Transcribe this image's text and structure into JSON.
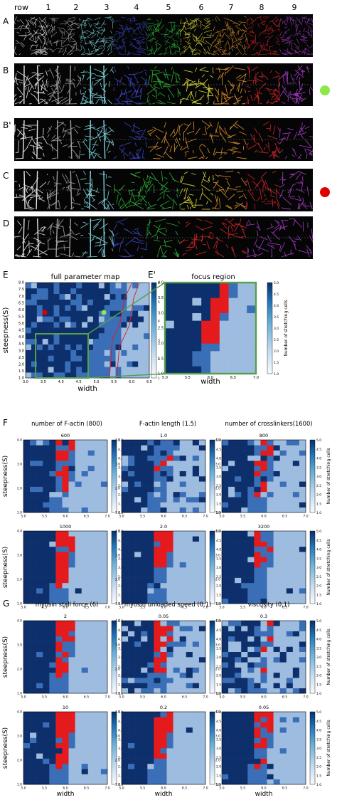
{
  "figure": {
    "top_labels": [
      "row",
      "1",
      "2",
      "3",
      "4",
      "5",
      "6",
      "7",
      "8",
      "9"
    ],
    "colors": {
      "row_palette": [
        "#e6e6e6",
        "#a0a0a0",
        "#7fd3dc",
        "#3b46c8",
        "#2fae3a",
        "#d8d83a",
        "#e0902a",
        "#d3262a",
        "#a63cc8"
      ],
      "dark_blue": "#0d2f6b",
      "mid_blue": "#3a6fb7",
      "light_blue": "#9dbcdf",
      "white": "#f2f6fb",
      "red": "#e41a1c",
      "green_dot": "#8ee84a",
      "red_dot": "#e00000",
      "zoom_green": "#55a04a"
    },
    "rows": [
      {
        "label": "A",
        "marker": "none"
      },
      {
        "label": "B",
        "marker": "green-dot"
      },
      {
        "label": "B'",
        "marker": "none"
      },
      {
        "label": "C",
        "marker": "red-dot"
      },
      {
        "label": "D",
        "marker": "none"
      }
    ],
    "panel_E": {
      "label": "E",
      "title": "full parameter map",
      "xlabel": "width",
      "ylabel": "steepness(S)",
      "xticks": [
        "3.0",
        "3.5",
        "4.0",
        "4.5",
        "5.0",
        "5.5",
        "6.0",
        "6.5"
      ],
      "yticks": [
        "1.0",
        "1.5",
        "2.0",
        "2.5",
        "3.0",
        "3.5",
        "4.0",
        "4.5",
        "5.0",
        "5.5",
        "6.0",
        "6.5",
        "7.0",
        "7.5",
        "8.0"
      ],
      "colorbar_ticks": [
        "1",
        "2",
        "3",
        "4",
        "5",
        "6"
      ]
    },
    "panel_E2": {
      "label": "E'",
      "title": "focus region",
      "xlabel": "width",
      "xticks": [
        "5.0",
        "5.5",
        "6.0",
        "6.5",
        "7.0"
      ],
      "yticks": [
        "1.0",
        "1.5",
        "2.0",
        "2.5",
        "3.0",
        "3.5",
        "4.0"
      ],
      "colorbar_ticks": [
        "1.0",
        "1.5",
        "2.0",
        "2.5",
        "3.0",
        "3.5",
        "4.0",
        "4.5",
        "5.0"
      ],
      "colorbar_label": "Number of stretching cells"
    },
    "panel_F": {
      "label": "F",
      "headers": [
        "number of F-actin (800)",
        "F-actin length (1.5)",
        "number of crosslinkers(1600)"
      ],
      "subtitles": [
        [
          "600",
          "1.0",
          "800"
        ],
        [
          "1000",
          "2.0",
          "3200"
        ]
      ],
      "ylabel": "steepness(S)"
    },
    "panel_G": {
      "label": "G",
      "headers": [
        "myosin stall force (6)",
        "myosin unloaded speed (0.1)",
        "viscosity (0.1)"
      ],
      "subtitles": [
        [
          "2",
          "0.05",
          "0.3"
        ],
        [
          "10",
          "0.2",
          "0.05"
        ]
      ],
      "ylabel": "steepness(S)",
      "xlabel": "width"
    },
    "small_map": {
      "xticks": [
        "5.0",
        "5.5",
        "6.0",
        "6.5",
        "7.0"
      ],
      "yticks": [
        "1.0",
        "2.0",
        "3.0",
        "4.0"
      ],
      "colorbar_ticks": [
        "1.0",
        "1.5",
        "2.0",
        "2.5",
        "3.0",
        "3.5",
        "4.0",
        "4.5",
        "5.0"
      ],
      "colorbar_label": "Number of stretching cells"
    }
  }
}
